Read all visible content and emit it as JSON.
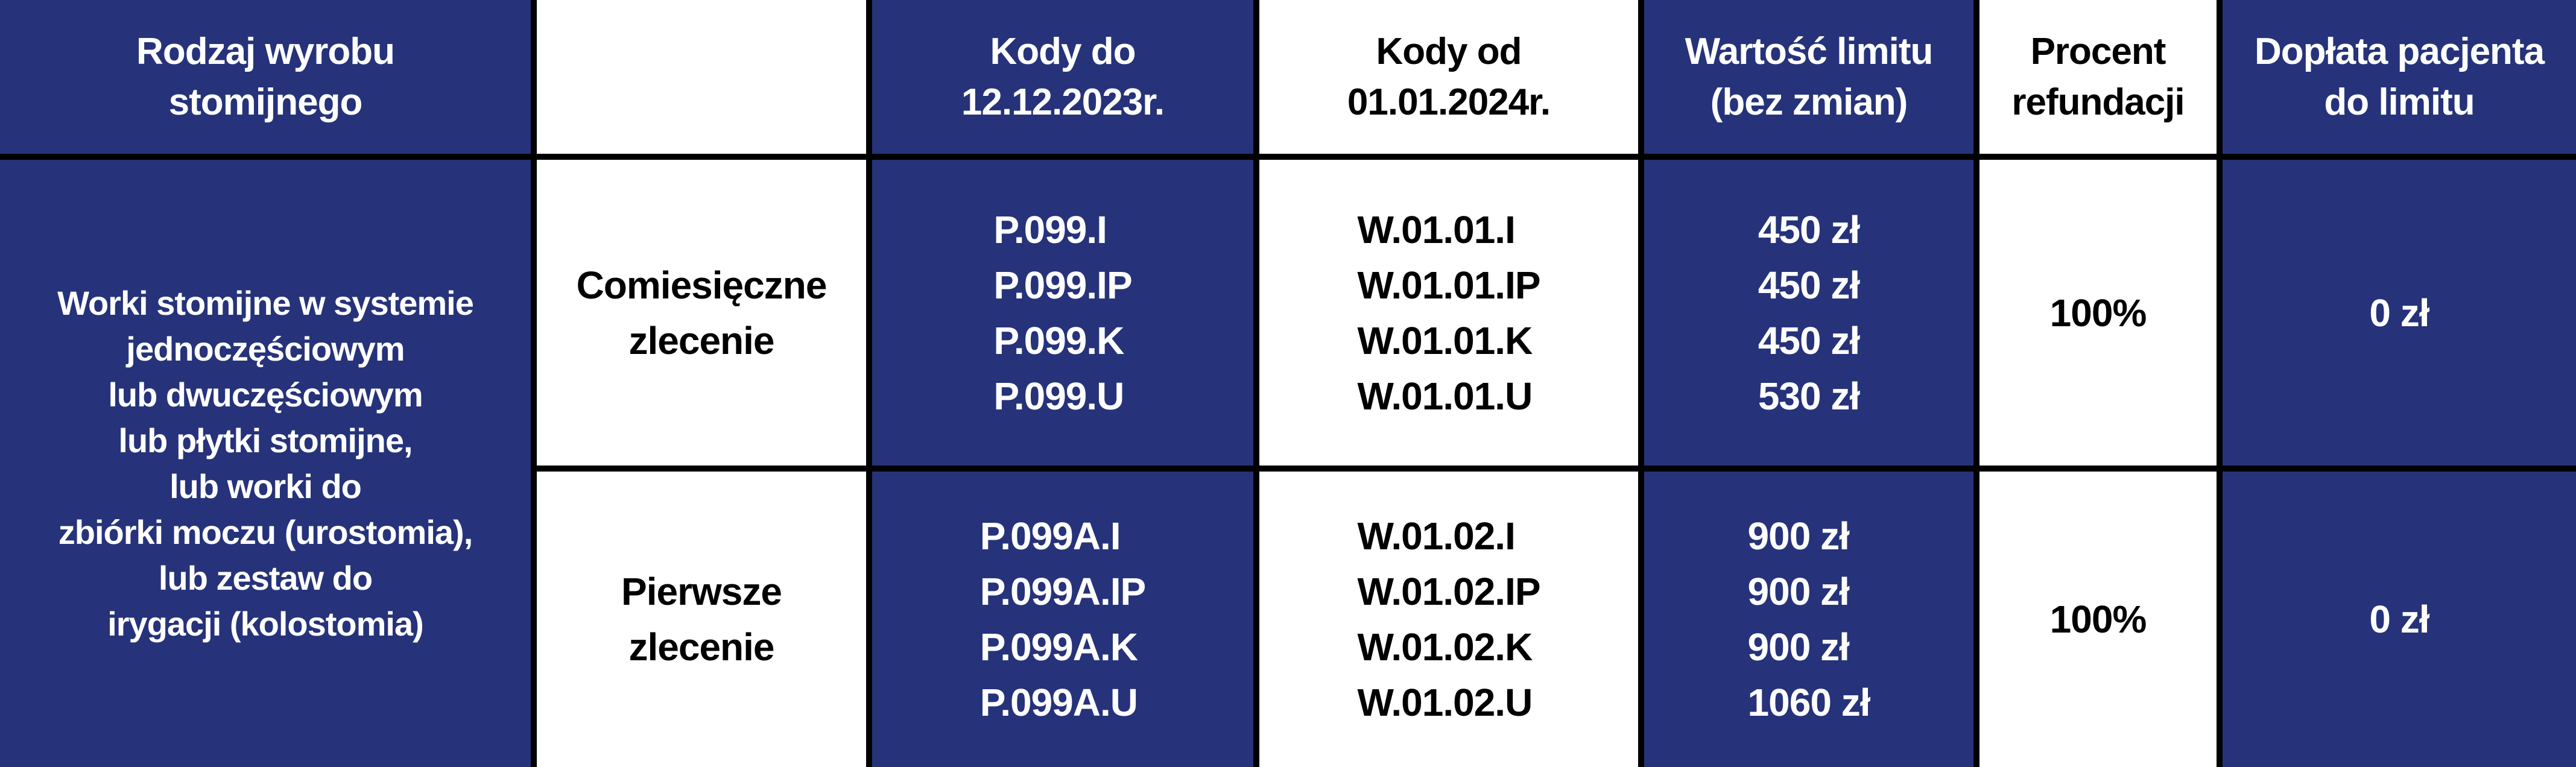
{
  "header": {
    "col1": [
      "Rodzaj wyrobu",
      "stomijnego"
    ],
    "col2": "",
    "col3": [
      "Kody do",
      "12.12.2023r."
    ],
    "col4": [
      "Kody od",
      "01.01.2024r."
    ],
    "col5": [
      "Wartość limitu",
      "(bez zmian)"
    ],
    "col6": [
      "Procent",
      "refundacji"
    ],
    "col7": [
      "Dopłata pacjenta",
      "do limitu"
    ]
  },
  "product": [
    "Worki stomijne w systemie",
    "jednoczęściowym",
    "lub dwuczęściowym",
    "lub płytki stomijne,",
    "lub worki do",
    "zbiórki moczu (urostomia),",
    "lub zestaw do",
    "irygacji (kolostomia)"
  ],
  "rows": [
    {
      "order": [
        "Comiesięczne",
        "zlecenie"
      ],
      "old_codes": [
        "P.099.I",
        "P.099.IP",
        "P.099.K",
        "P.099.U"
      ],
      "new_codes": [
        "W.01.01.I",
        "W.01.01.IP",
        "W.01.01.K",
        "W.01.01.U"
      ],
      "limits": [
        "450 zł",
        "450 zł",
        "450 zł",
        "530 zł"
      ],
      "refund": "100%",
      "copay": "0 zł"
    },
    {
      "order": [
        "Pierwsze",
        "zlecenie"
      ],
      "old_codes": [
        "P.099A.I",
        "P.099A.IP",
        "P.099A.K",
        "P.099A.U"
      ],
      "new_codes": [
        "W.01.02.I",
        "W.01.02.IP",
        "W.01.02.K",
        "W.01.02.U"
      ],
      "limits": [
        "900 zł",
        "900 zł",
        "900 zł",
        "1060 zł"
      ],
      "refund": "100%",
      "copay": "0 zł"
    }
  ],
  "colors": {
    "navy": "#26337a",
    "white": "#ffffff",
    "border": "#000000"
  }
}
